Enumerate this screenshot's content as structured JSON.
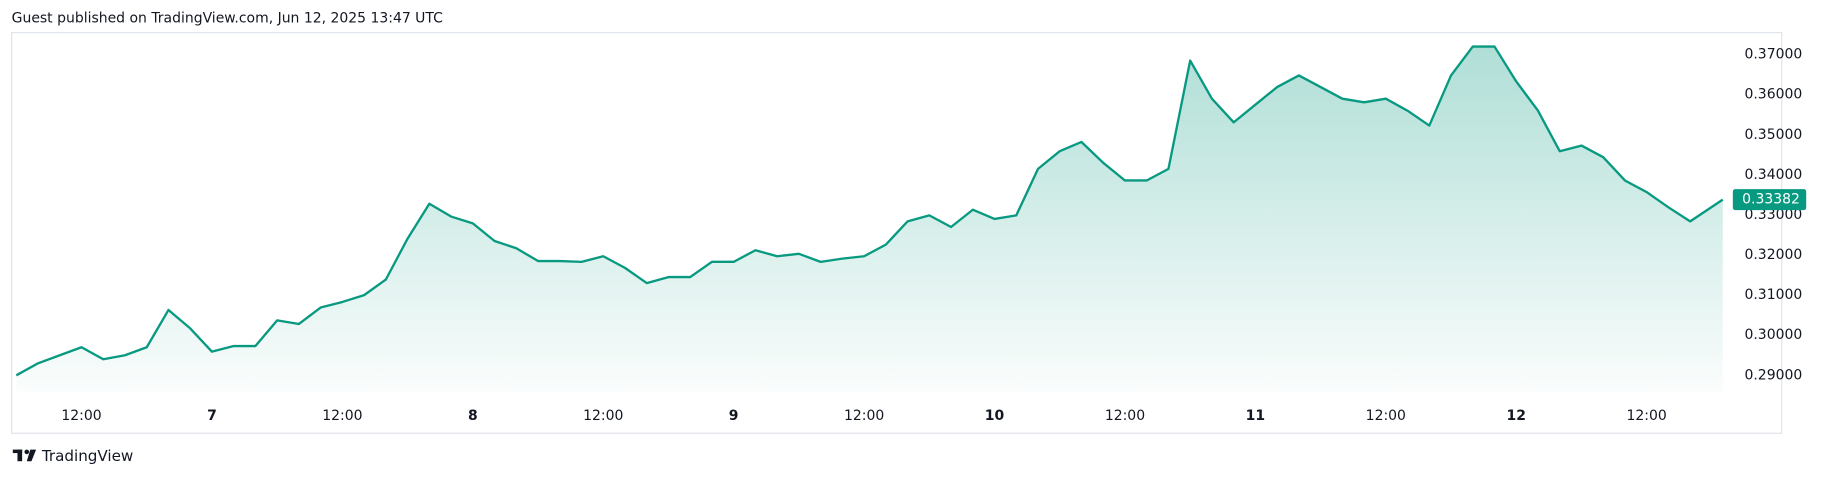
{
  "header": "Guest published on TradingView.com, Jun 12, 2025 13:47 UTC",
  "footer": "TradingView",
  "chart_data": {
    "type": "area",
    "x": [
      6,
      8,
      10,
      12,
      14,
      16,
      18,
      20,
      22,
      24,
      26,
      28,
      30,
      32,
      34,
      36,
      38,
      40,
      42,
      44,
      46,
      48,
      50,
      52,
      54,
      56,
      58,
      60,
      62,
      64,
      66,
      68,
      70,
      72,
      74,
      76,
      78,
      80,
      82,
      84,
      86,
      88,
      90,
      92,
      94,
      96,
      98,
      100,
      102,
      104,
      106,
      108,
      110,
      112,
      114,
      116,
      118,
      120,
      122,
      124,
      126,
      128,
      130,
      132,
      134,
      136,
      138,
      140,
      142,
      144,
      146,
      148,
      150,
      152,
      154,
      156,
      158,
      160,
      163
    ],
    "series": [
      {
        "color": "#089981",
        "values": [
          0.29,
          0.293,
          0.295,
          0.297,
          0.294,
          0.295,
          0.297,
          0.3063,
          0.3017,
          0.2959,
          0.2973,
          0.2973,
          0.3037,
          0.3028,
          0.3069,
          0.3083,
          0.31,
          0.3139,
          0.3241,
          0.3328,
          0.3296,
          0.3279,
          0.3235,
          0.3217,
          0.3185,
          0.3185,
          0.3183,
          0.3197,
          0.3168,
          0.313,
          0.3145,
          0.3145,
          0.3183,
          0.3183,
          0.3212,
          0.3197,
          0.3203,
          0.3183,
          0.3191,
          0.3197,
          0.3226,
          0.3284,
          0.3299,
          0.327,
          0.3313,
          0.329,
          0.3299,
          0.3415,
          0.3459,
          0.3482,
          0.343,
          0.3386,
          0.3386,
          0.3415,
          0.3685,
          0.359,
          0.3531,
          0.3575,
          0.3619,
          0.3648,
          0.3619,
          0.359,
          0.3581,
          0.359,
          0.356,
          0.3523,
          0.3648,
          0.372,
          0.372,
          0.3633,
          0.356,
          0.3459,
          0.3473,
          0.3444,
          0.3386,
          0.3357,
          0.3319,
          0.3284,
          0.33382
        ],
        "value_labels": [
          null,
          null,
          null,
          null,
          null,
          null,
          null,
          null,
          null,
          null,
          null,
          null,
          null,
          null,
          null,
          null,
          null,
          null,
          null,
          null,
          null,
          null,
          null,
          null,
          null,
          null,
          null,
          null,
          null,
          null,
          null,
          null,
          null,
          null,
          null,
          null,
          null,
          null,
          null,
          null,
          null,
          null,
          null,
          null,
          null,
          null,
          null,
          null,
          null,
          null,
          null,
          null,
          null,
          null,
          null,
          null,
          null,
          null,
          null,
          null,
          null,
          null,
          null,
          null,
          null,
          null,
          null,
          null,
          null,
          null,
          null,
          null,
          null,
          null,
          null,
          null,
          null,
          null,
          "0.33382"
        ]
      }
    ],
    "xlim": [
      5.57,
      163.07
    ],
    "xticks": [
      {
        "value": 12,
        "label": "12:00"
      },
      {
        "value": 24,
        "label": "7"
      },
      {
        "value": 36,
        "label": "12:00"
      },
      {
        "value": 48,
        "label": "8"
      },
      {
        "value": 60,
        "label": "12:00"
      },
      {
        "value": 72,
        "label": "9"
      },
      {
        "value": 84,
        "label": "12:00"
      },
      {
        "value": 96,
        "label": "10"
      },
      {
        "value": 108,
        "label": "12:00"
      },
      {
        "value": 120,
        "label": "11"
      },
      {
        "value": 132,
        "label": "12:00"
      },
      {
        "value": 144,
        "label": "12"
      },
      {
        "value": 156,
        "label": "12:00"
      }
    ],
    "ylim": [
      0.286,
      0.3749
    ],
    "yticks": [
      {
        "value": 0.29,
        "label": "0.29000"
      },
      {
        "value": 0.3,
        "label": "0.30000"
      },
      {
        "value": 0.31,
        "label": "0.31000"
      },
      {
        "value": 0.32,
        "label": "0.32000"
      },
      {
        "value": 0.33,
        "label": "0.33000"
      },
      {
        "value": 0.34,
        "label": "0.34000"
      },
      {
        "value": 0.35,
        "label": "0.35000"
      },
      {
        "value": 0.36,
        "label": "0.36000"
      },
      {
        "value": 0.37,
        "label": "0.37000"
      }
    ],
    "grid": false
  }
}
